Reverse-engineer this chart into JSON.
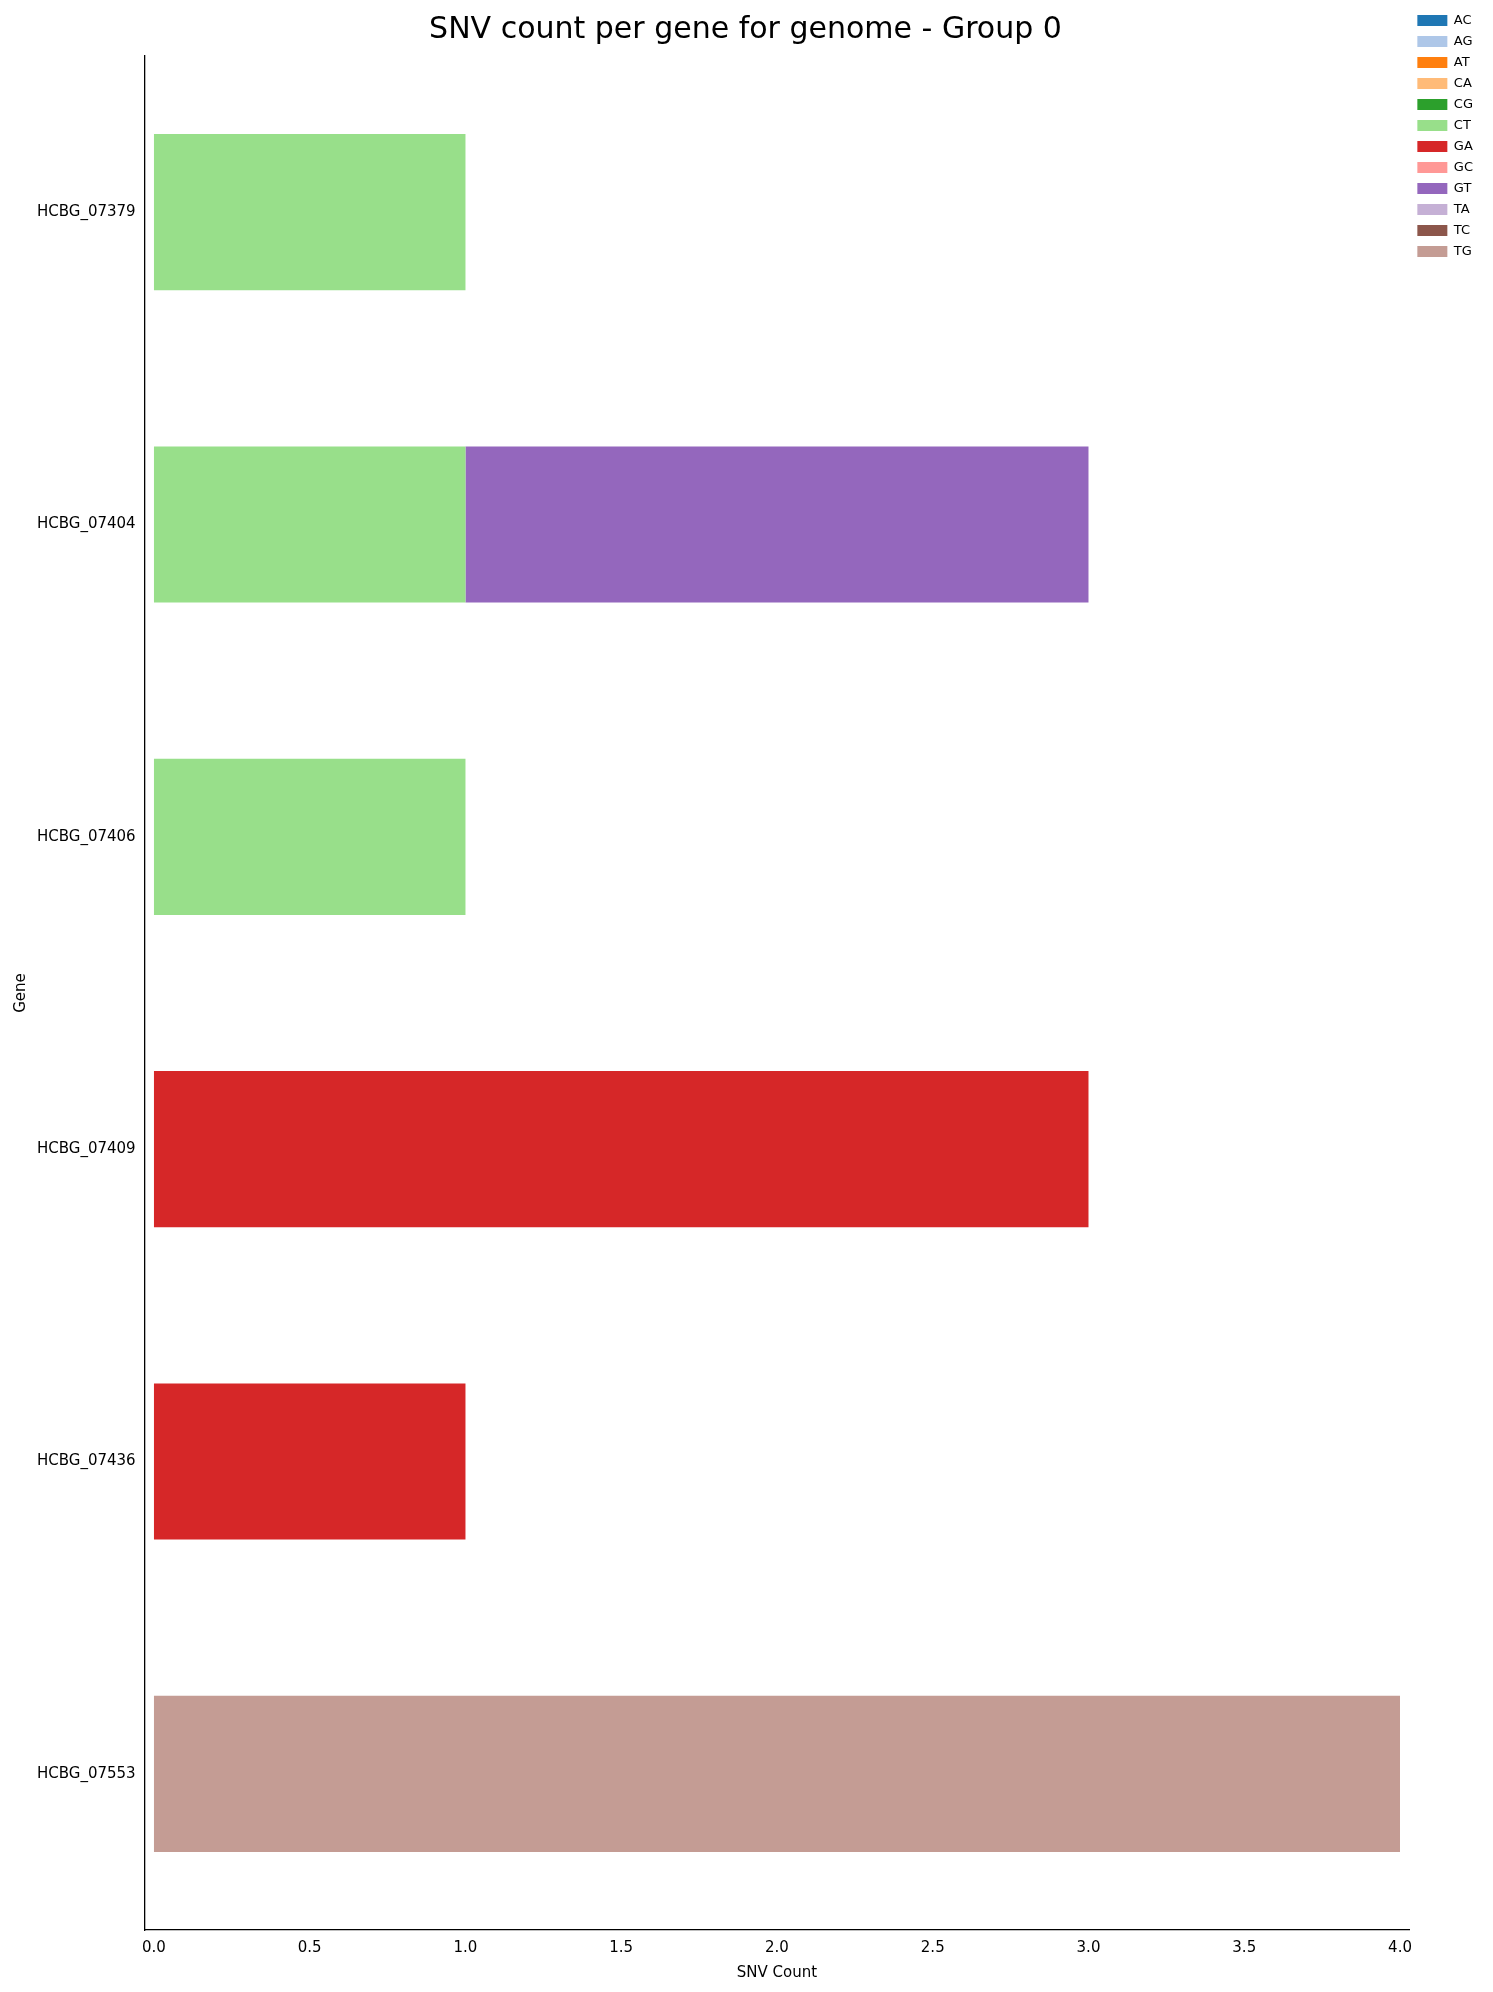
{
  "chart_data": {
    "type": "bar",
    "orientation": "horizontal",
    "stacked": true,
    "title": "SNV count per gene for genome - Group 0",
    "xlabel": "SNV Count",
    "ylabel": "Gene",
    "categories": [
      "HCBG_07379",
      "HCBG_07404",
      "HCBG_07406",
      "HCBG_07409",
      "HCBG_07436",
      "HCBG_07553"
    ],
    "series": [
      {
        "name": "AC",
        "color": "#1f77b4",
        "values": [
          0,
          0,
          0,
          0,
          0,
          0
        ]
      },
      {
        "name": "AG",
        "color": "#aec7e8",
        "values": [
          0,
          0,
          0,
          0,
          0,
          0
        ]
      },
      {
        "name": "AT",
        "color": "#ff7f0e",
        "values": [
          0,
          0,
          0,
          0,
          0,
          0
        ]
      },
      {
        "name": "CA",
        "color": "#ffbb78",
        "values": [
          0,
          0,
          0,
          0,
          0,
          0
        ]
      },
      {
        "name": "CG",
        "color": "#2ca02c",
        "values": [
          0,
          0,
          0,
          0,
          0,
          0
        ]
      },
      {
        "name": "CT",
        "color": "#98df8a",
        "values": [
          1,
          1,
          1,
          0,
          0,
          0
        ]
      },
      {
        "name": "GA",
        "color": "#d62728",
        "values": [
          0,
          0,
          0,
          3,
          1,
          0
        ]
      },
      {
        "name": "GC",
        "color": "#ff9896",
        "values": [
          0,
          0,
          0,
          0,
          0,
          0
        ]
      },
      {
        "name": "GT",
        "color": "#9467bd",
        "values": [
          0,
          2,
          0,
          0,
          0,
          0
        ]
      },
      {
        "name": "TA",
        "color": "#c5b0d5",
        "values": [
          0,
          0,
          0,
          0,
          0,
          0
        ]
      },
      {
        "name": "TC",
        "color": "#8c564b",
        "values": [
          0,
          0,
          0,
          0,
          0,
          0
        ]
      },
      {
        "name": "TG",
        "color": "#c49c94",
        "values": [
          0,
          0,
          0,
          0,
          0,
          4
        ]
      }
    ],
    "xlim": [
      -0.03,
      4.03
    ],
    "xticks": [
      {
        "value": 0,
        "label": "0.0"
      },
      {
        "value": 0.5,
        "label": "0.5"
      },
      {
        "value": 1,
        "label": "1.0"
      },
      {
        "value": 1.5,
        "label": "1.5"
      },
      {
        "value": 2,
        "label": "2.0"
      },
      {
        "value": 2.5,
        "label": "2.5"
      },
      {
        "value": 3,
        "label": "3.0"
      },
      {
        "value": 3.5,
        "label": "3.5"
      },
      {
        "value": 4,
        "label": "4.0"
      }
    ],
    "grid": false,
    "legend": "top right"
  }
}
